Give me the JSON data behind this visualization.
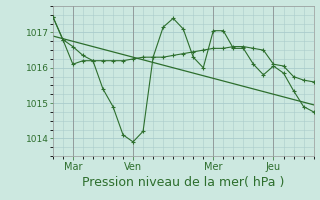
{
  "bg_color": "#cce8e0",
  "grid_color": "#aacccc",
  "line_color": "#2d6e2d",
  "marker_color": "#2d6e2d",
  "xlabel": "Pression niveau de la mer( hPa )",
  "xlabel_fontsize": 9,
  "ylim": [
    1013.5,
    1017.75
  ],
  "yticks": [
    1014,
    1015,
    1016,
    1017
  ],
  "day_labels": [
    "Mar",
    "Ven",
    "Mer",
    "Jeu"
  ],
  "day_positions": [
    24,
    96,
    192,
    264
  ],
  "xlim": [
    0,
    312
  ],
  "series1_x": [
    0,
    12,
    24,
    36,
    48,
    60,
    72,
    84,
    96,
    108,
    120,
    132,
    144,
    156,
    168,
    180,
    192,
    204,
    216,
    228,
    240,
    252,
    264,
    276,
    288,
    300,
    312
  ],
  "series1_y": [
    1017.45,
    1016.8,
    1016.6,
    1016.35,
    1016.2,
    1016.2,
    1016.2,
    1016.2,
    1016.25,
    1016.3,
    1016.3,
    1016.3,
    1016.35,
    1016.4,
    1016.45,
    1016.5,
    1016.55,
    1016.55,
    1016.6,
    1016.6,
    1016.55,
    1016.5,
    1016.1,
    1016.05,
    1015.75,
    1015.65,
    1015.6
  ],
  "series2_x": [
    0,
    12,
    24,
    36,
    48,
    60,
    72,
    84,
    96,
    108,
    120,
    132,
    144,
    156,
    168,
    180,
    192,
    204,
    216,
    228,
    240,
    252,
    264,
    276,
    288,
    300,
    312
  ],
  "series2_y": [
    1017.45,
    1016.8,
    1016.1,
    1016.2,
    1016.2,
    1015.4,
    1014.9,
    1014.1,
    1013.9,
    1014.2,
    1016.3,
    1017.15,
    1017.4,
    1017.1,
    1016.3,
    1016.0,
    1017.05,
    1017.05,
    1016.55,
    1016.55,
    1016.1,
    1015.8,
    1016.05,
    1015.85,
    1015.35,
    1014.9,
    1014.75
  ],
  "trend_x": [
    0,
    312
  ],
  "trend_y": [
    1016.9,
    1014.95
  ]
}
